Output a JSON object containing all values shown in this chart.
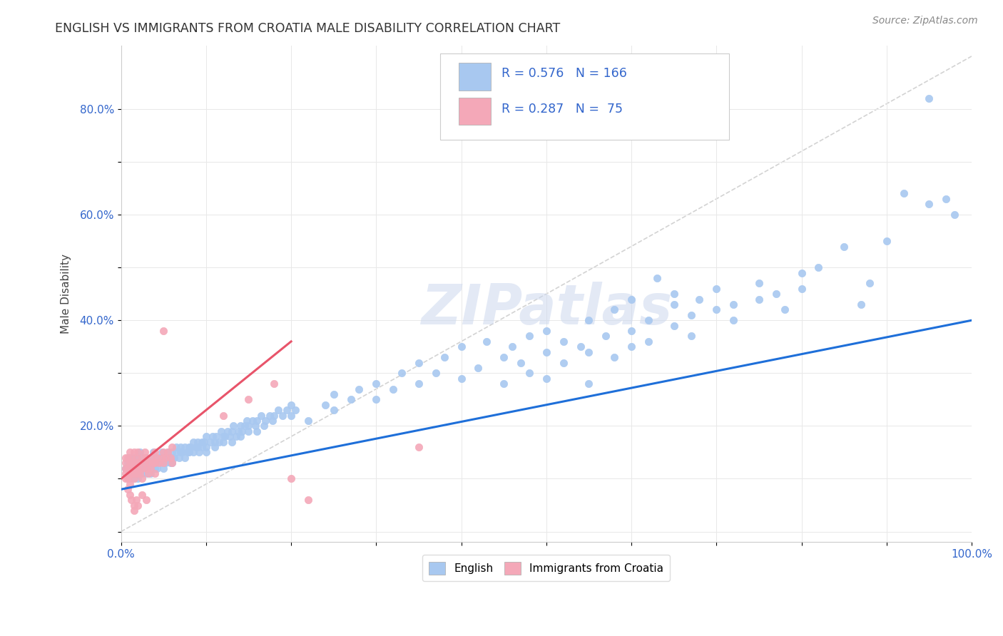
{
  "title": "ENGLISH VS IMMIGRANTS FROM CROATIA MALE DISABILITY CORRELATION CHART",
  "source": "Source: ZipAtlas.com",
  "ylabel": "Male Disability",
  "xlim": [
    0.0,
    1.0
  ],
  "ylim": [
    -0.02,
    0.92
  ],
  "xticks": [
    0.0,
    0.1,
    0.2,
    0.3,
    0.4,
    0.5,
    0.6,
    0.7,
    0.8,
    0.9,
    1.0
  ],
  "xticklabels": [
    "0.0%",
    "",
    "",
    "",
    "",
    "",
    "",
    "",
    "",
    "",
    "100.0%"
  ],
  "yticks": [
    0.0,
    0.1,
    0.2,
    0.3,
    0.4,
    0.5,
    0.6,
    0.7,
    0.8
  ],
  "yticklabels": [
    "",
    "",
    "20.0%",
    "",
    "40.0%",
    "",
    "60.0%",
    "",
    "80.0%"
  ],
  "english_color": "#a8c8f0",
  "croatia_color": "#f4a8b8",
  "english_line_color": "#1e6fd9",
  "croatia_line_color": "#e8546a",
  "diag_line_color": "#c8c8c8",
  "R_english": 0.576,
  "N_english": 166,
  "R_croatia": 0.287,
  "N_croatia": 75,
  "watermark": "ZIPatlas",
  "eng_line_x0": 0.0,
  "eng_line_y0": 0.08,
  "eng_line_x1": 1.0,
  "eng_line_y1": 0.4,
  "cro_line_x0": 0.0,
  "cro_line_y0": 0.1,
  "cro_line_x1": 0.2,
  "cro_line_y1": 0.36
}
